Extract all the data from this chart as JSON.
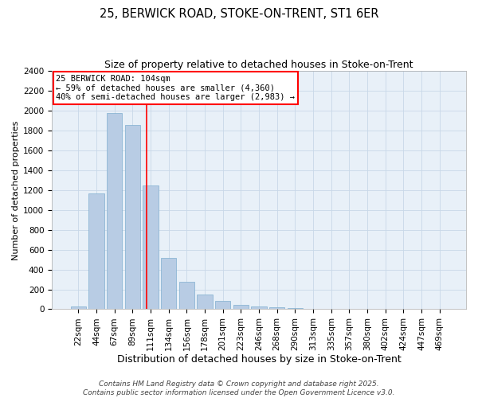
{
  "title1": "25, BERWICK ROAD, STOKE-ON-TRENT, ST1 6ER",
  "title2": "Size of property relative to detached houses in Stoke-on-Trent",
  "xlabel": "Distribution of detached houses by size in Stoke-on-Trent",
  "ylabel": "Number of detached properties",
  "categories": [
    "22sqm",
    "44sqm",
    "67sqm",
    "89sqm",
    "111sqm",
    "134sqm",
    "156sqm",
    "178sqm",
    "201sqm",
    "223sqm",
    "246sqm",
    "268sqm",
    "290sqm",
    "313sqm",
    "335sqm",
    "357sqm",
    "380sqm",
    "402sqm",
    "424sqm",
    "447sqm",
    "469sqm"
  ],
  "values": [
    25,
    1170,
    1975,
    1855,
    1245,
    520,
    275,
    150,
    85,
    45,
    30,
    20,
    12,
    6,
    4,
    3,
    3,
    2,
    2,
    2,
    2
  ],
  "bar_color": "#b8cce4",
  "bar_edge_color": "#7faecf",
  "grid_color": "#c8d8e8",
  "background_color": "#e8f0f8",
  "annotation_text": "25 BERWICK ROAD: 104sqm\n← 59% of detached houses are smaller (4,360)\n40% of semi-detached houses are larger (2,983) →",
  "redline_x": 3.78,
  "ylim": [
    0,
    2400
  ],
  "yticks": [
    0,
    200,
    400,
    600,
    800,
    1000,
    1200,
    1400,
    1600,
    1800,
    2000,
    2200,
    2400
  ],
  "footer_line1": "Contains HM Land Registry data © Crown copyright and database right 2025.",
  "footer_line2": "Contains public sector information licensed under the Open Government Licence v3.0.",
  "title1_fontsize": 10.5,
  "title2_fontsize": 9,
  "xlabel_fontsize": 9,
  "ylabel_fontsize": 8,
  "tick_fontsize": 7.5,
  "footer_fontsize": 6.5,
  "annotation_fontsize": 7.5
}
